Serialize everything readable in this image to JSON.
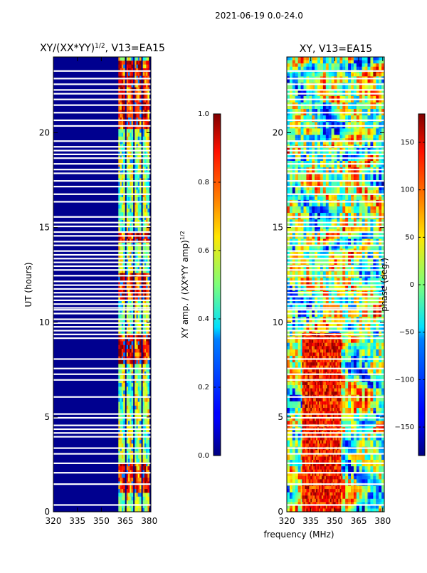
{
  "suptitle": "2021-06-19 0.0-24.0",
  "xlabel": "frequency (MHz)",
  "chart_data": [
    {
      "type": "heatmap",
      "title": "XY/(XX*YY)^{1/2}, V13=EA15",
      "title_main": "XY/(XX*YY)",
      "title_sup": "1/2",
      "title_tail": ", V13=EA15",
      "xlabel": "frequency (MHz)",
      "ylabel": "UT (hours)",
      "xlim": [
        320,
        381
      ],
      "ylim": [
        0,
        24
      ],
      "xticks": [
        320,
        335,
        350,
        365,
        380
      ],
      "yticks": [
        0,
        5,
        10,
        15,
        20
      ],
      "colormap": "jet",
      "colorbar": {
        "label": "XY amp. / (XX*YY amp)^{1/2}",
        "label_main": "XY amp. / (XX*YY amp)",
        "label_sup": "1/2",
        "range": [
          0.0,
          1.0
        ],
        "ticks": [
          "0.0",
          "0.2",
          "0.4",
          "0.6",
          "0.8",
          "1.0"
        ]
      },
      "high_amplitude_channels_mhz": [
        [
          361,
          365
        ],
        [
          366,
          370
        ],
        [
          371,
          375
        ],
        [
          376,
          380
        ]
      ],
      "high_amplitude_hours": [
        [
          1.0,
          2.5
        ],
        [
          7.8,
          9.3
        ],
        [
          11.3,
          12.6
        ],
        [
          14.2,
          14.8
        ],
        [
          20.2,
          23.8
        ]
      ]
    },
    {
      "type": "heatmap",
      "title": "XY, V13=EA15",
      "xlabel": "frequency (MHz)",
      "ylabel": "",
      "xlim": [
        320,
        381
      ],
      "ylim": [
        0,
        24
      ],
      "xticks": [
        320,
        335,
        350,
        365,
        380
      ],
      "yticks": [
        0,
        5,
        10,
        15,
        20
      ],
      "colormap": "jet",
      "colorbar": {
        "label": "phase (deg.)",
        "range": [
          -180,
          180
        ],
        "ticks": [
          "−150",
          "−100",
          "−50",
          "0",
          "50",
          "100",
          "150"
        ]
      }
    }
  ],
  "flagged_hours": [
    0.4,
    1.5,
    2.1,
    2.6,
    3.1,
    3.4,
    4.0,
    4.2,
    4.4,
    4.6,
    5.0,
    5.2,
    6.1,
    7.0,
    7.3,
    7.6,
    8.1,
    9.2,
    9.4,
    9.6,
    9.8,
    10.0,
    10.2,
    10.5,
    10.7,
    10.8,
    11.0,
    11.2,
    11.4,
    11.6,
    11.8,
    12.0,
    12.2,
    12.5,
    12.8,
    13.0,
    13.2,
    13.4,
    13.6,
    13.8,
    14.1,
    14.3,
    14.6,
    14.8,
    15.1,
    15.3,
    15.6,
    16.4,
    16.8,
    17.2,
    17.5,
    17.9,
    18.1,
    18.4,
    18.7,
    18.9,
    19.1,
    19.3,
    19.6,
    20.4,
    20.7,
    21.1,
    21.5,
    21.8,
    22.1,
    22.3,
    22.6,
    22.9,
    23.3
  ]
}
